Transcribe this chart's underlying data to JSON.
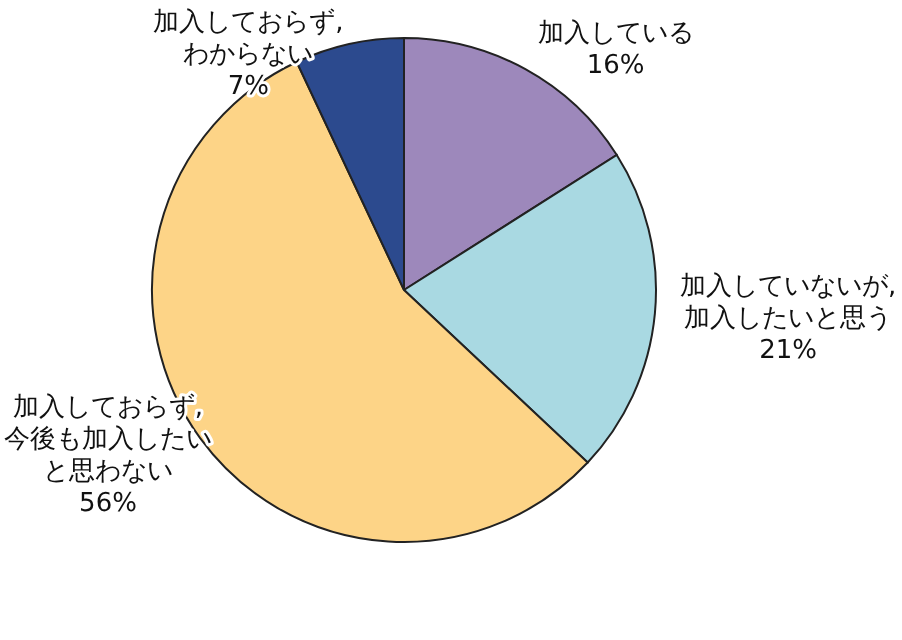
{
  "chart_data": {
    "type": "pie",
    "categories": [
      "加入している",
      "加入していないが,加入したいと思う",
      "加入しておらず,今後も加入したいと思わない",
      "加入しておらず,わからない"
    ],
    "values": [
      16,
      21,
      56,
      7
    ],
    "colors": [
      "#9d88bb",
      "#a9d9e2",
      "#fdd487",
      "#2c4a8e"
    ],
    "value_labels": [
      "16%",
      "21%",
      "56%",
      "7%"
    ]
  }
}
